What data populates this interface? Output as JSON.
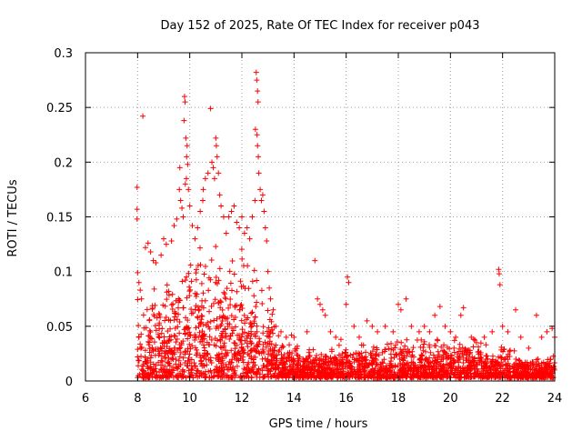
{
  "chart_data": {
    "type": "scatter",
    "title": "Day 152 of 2025, Rate Of TEC Index for receiver p043",
    "xlabel": "GPS time / hours",
    "ylabel": "ROTI / TECUs",
    "xlim": [
      6,
      24
    ],
    "ylim": [
      0,
      0.3
    ],
    "x_ticks": [
      "6",
      "8",
      "10",
      "12",
      "14",
      "16",
      "18",
      "20",
      "22",
      "24"
    ],
    "y_ticks": [
      "0",
      "0.05",
      "0.1",
      "0.15",
      "0.2",
      "0.25",
      "0.3"
    ],
    "grid": true,
    "marker": "plus",
    "series": [
      {
        "name": "ROTI",
        "color": "#ff0000",
        "points": [
          [
            7.98,
            0.177
          ],
          [
            7.98,
            0.157
          ],
          [
            7.98,
            0.148
          ],
          [
            8.2,
            0.242
          ],
          [
            8.0,
            0.099
          ],
          [
            8.05,
            0.09
          ],
          [
            8.1,
            0.083
          ],
          [
            8.15,
            0.075
          ],
          [
            8.3,
            0.122
          ],
          [
            8.4,
            0.126
          ],
          [
            8.5,
            0.118
          ],
          [
            8.6,
            0.11
          ],
          [
            8.7,
            0.108
          ],
          [
            8.9,
            0.115
          ],
          [
            9.0,
            0.13
          ],
          [
            9.1,
            0.125
          ],
          [
            9.3,
            0.128
          ],
          [
            9.4,
            0.142
          ],
          [
            9.5,
            0.148
          ],
          [
            9.6,
            0.175
          ],
          [
            9.62,
            0.195
          ],
          [
            9.65,
            0.165
          ],
          [
            9.7,
            0.158
          ],
          [
            9.75,
            0.15
          ],
          [
            9.8,
            0.26
          ],
          [
            9.82,
            0.255
          ],
          [
            9.78,
            0.238
          ],
          [
            9.85,
            0.222
          ],
          [
            9.9,
            0.215
          ],
          [
            9.88,
            0.205
          ],
          [
            9.92,
            0.198
          ],
          [
            9.87,
            0.185
          ],
          [
            9.83,
            0.18
          ],
          [
            9.95,
            0.175
          ],
          [
            10.0,
            0.16
          ],
          [
            10.1,
            0.142
          ],
          [
            10.2,
            0.13
          ],
          [
            10.3,
            0.14
          ],
          [
            10.4,
            0.155
          ],
          [
            10.5,
            0.165
          ],
          [
            10.52,
            0.175
          ],
          [
            10.6,
            0.185
          ],
          [
            10.7,
            0.19
          ],
          [
            10.8,
            0.249
          ],
          [
            10.85,
            0.2
          ],
          [
            10.9,
            0.195
          ],
          [
            10.95,
            0.185
          ],
          [
            11.0,
            0.222
          ],
          [
            11.02,
            0.215
          ],
          [
            11.05,
            0.205
          ],
          [
            11.1,
            0.19
          ],
          [
            11.15,
            0.17
          ],
          [
            11.2,
            0.16
          ],
          [
            11.3,
            0.15
          ],
          [
            11.4,
            0.135
          ],
          [
            11.5,
            0.15
          ],
          [
            11.6,
            0.155
          ],
          [
            11.7,
            0.16
          ],
          [
            11.8,
            0.145
          ],
          [
            11.9,
            0.14
          ],
          [
            12.0,
            0.15
          ],
          [
            12.1,
            0.135
          ],
          [
            12.2,
            0.14
          ],
          [
            12.3,
            0.13
          ],
          [
            12.4,
            0.15
          ],
          [
            12.5,
            0.165
          ],
          [
            12.55,
            0.282
          ],
          [
            12.57,
            0.275
          ],
          [
            12.6,
            0.265
          ],
          [
            12.62,
            0.255
          ],
          [
            12.52,
            0.23
          ],
          [
            12.58,
            0.225
          ],
          [
            12.6,
            0.215
          ],
          [
            12.63,
            0.205
          ],
          [
            12.65,
            0.19
          ],
          [
            12.7,
            0.175
          ],
          [
            12.75,
            0.165
          ],
          [
            12.8,
            0.17
          ],
          [
            12.85,
            0.155
          ],
          [
            12.9,
            0.14
          ],
          [
            12.95,
            0.128
          ],
          [
            13.0,
            0.1
          ],
          [
            13.05,
            0.085
          ],
          [
            13.1,
            0.075
          ],
          [
            13.2,
            0.065
          ],
          [
            13.3,
            0.05
          ],
          [
            13.5,
            0.045
          ],
          [
            13.7,
            0.04
          ],
          [
            13.9,
            0.042
          ],
          [
            14.0,
            0.04
          ],
          [
            14.5,
            0.045
          ],
          [
            14.8,
            0.11
          ],
          [
            14.9,
            0.075
          ],
          [
            15.0,
            0.07
          ],
          [
            15.1,
            0.065
          ],
          [
            15.2,
            0.06
          ],
          [
            15.4,
            0.045
          ],
          [
            15.6,
            0.04
          ],
          [
            15.8,
            0.038
          ],
          [
            16.0,
            0.07
          ],
          [
            16.05,
            0.095
          ],
          [
            16.1,
            0.09
          ],
          [
            16.3,
            0.05
          ],
          [
            16.5,
            0.04
          ],
          [
            16.8,
            0.055
          ],
          [
            17.0,
            0.05
          ],
          [
            17.2,
            0.045
          ],
          [
            17.5,
            0.05
          ],
          [
            17.8,
            0.045
          ],
          [
            18.0,
            0.07
          ],
          [
            18.1,
            0.065
          ],
          [
            18.3,
            0.075
          ],
          [
            18.5,
            0.05
          ],
          [
            18.8,
            0.045
          ],
          [
            19.0,
            0.05
          ],
          [
            19.2,
            0.045
          ],
          [
            19.4,
            0.06
          ],
          [
            19.6,
            0.068
          ],
          [
            19.8,
            0.05
          ],
          [
            20.0,
            0.045
          ],
          [
            20.2,
            0.04
          ],
          [
            20.4,
            0.06
          ],
          [
            20.5,
            0.067
          ],
          [
            20.8,
            0.04
          ],
          [
            21.0,
            0.035
          ],
          [
            21.3,
            0.04
          ],
          [
            21.6,
            0.045
          ],
          [
            21.85,
            0.102
          ],
          [
            21.87,
            0.098
          ],
          [
            21.9,
            0.088
          ],
          [
            22.0,
            0.05
          ],
          [
            22.2,
            0.045
          ],
          [
            22.5,
            0.065
          ],
          [
            22.7,
            0.04
          ],
          [
            23.0,
            0.03
          ],
          [
            23.3,
            0.06
          ],
          [
            23.5,
            0.04
          ],
          [
            23.7,
            0.045
          ],
          [
            23.9,
            0.048
          ],
          [
            24.0,
            0.04
          ]
        ],
        "density_band": {
          "x_start": 8.0,
          "x_end": 24.0,
          "envelope": [
            [
              8.0,
              0.06
            ],
            [
              9.0,
              0.07
            ],
            [
              10.0,
              0.09
            ],
            [
              11.0,
              0.1
            ],
            [
              12.0,
              0.09
            ],
            [
              12.8,
              0.07
            ],
            [
              13.5,
              0.03
            ],
            [
              14.0,
              0.025
            ],
            [
              16.0,
              0.025
            ],
            [
              18.0,
              0.03
            ],
            [
              20.0,
              0.03
            ],
            [
              22.0,
              0.028
            ],
            [
              23.0,
              0.015
            ],
            [
              24.0,
              0.02
            ]
          ],
          "floor": 0.003,
          "count": 2600
        }
      }
    ]
  }
}
